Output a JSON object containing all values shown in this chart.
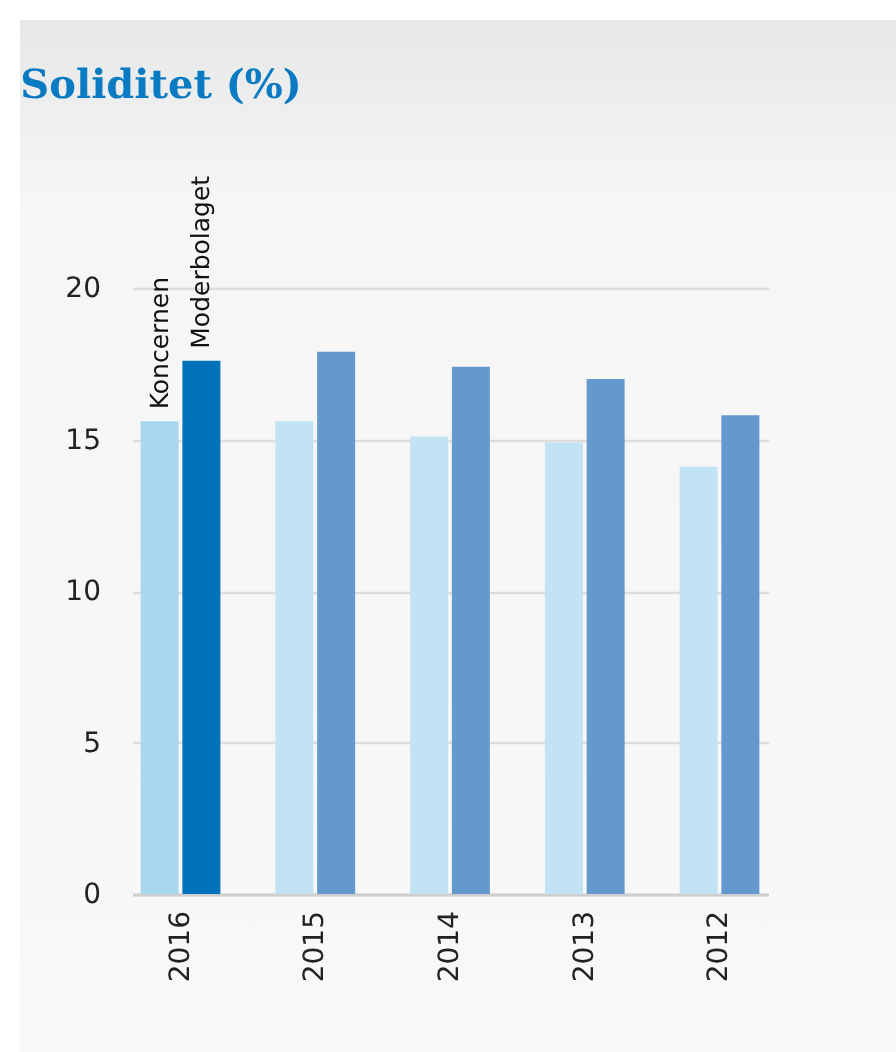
{
  "chart_data": {
    "type": "bar",
    "title": "Soliditet (%)",
    "categories": [
      "2016",
      "2015",
      "2014",
      "2013",
      "2012"
    ],
    "series": [
      {
        "name": "Koncernen",
        "colors": [
          "#a8d8ee",
          "#c2e3f4",
          "#c2e3f4",
          "#c2e3f4",
          "#c2e3f4"
        ],
        "values": [
          15.6,
          15.6,
          15.1,
          14.9,
          14.1
        ]
      },
      {
        "name": "Moderbolaget",
        "colors": [
          "#0072b9",
          "#6399cc",
          "#6399cc",
          "#6399cc",
          "#6399cc"
        ],
        "values": [
          17.6,
          17.9,
          17.4,
          17.0,
          15.8
        ]
      }
    ],
    "ylim": [
      0,
      20
    ],
    "yticks": [
      0,
      5,
      10,
      15,
      20
    ],
    "grid": "y"
  }
}
